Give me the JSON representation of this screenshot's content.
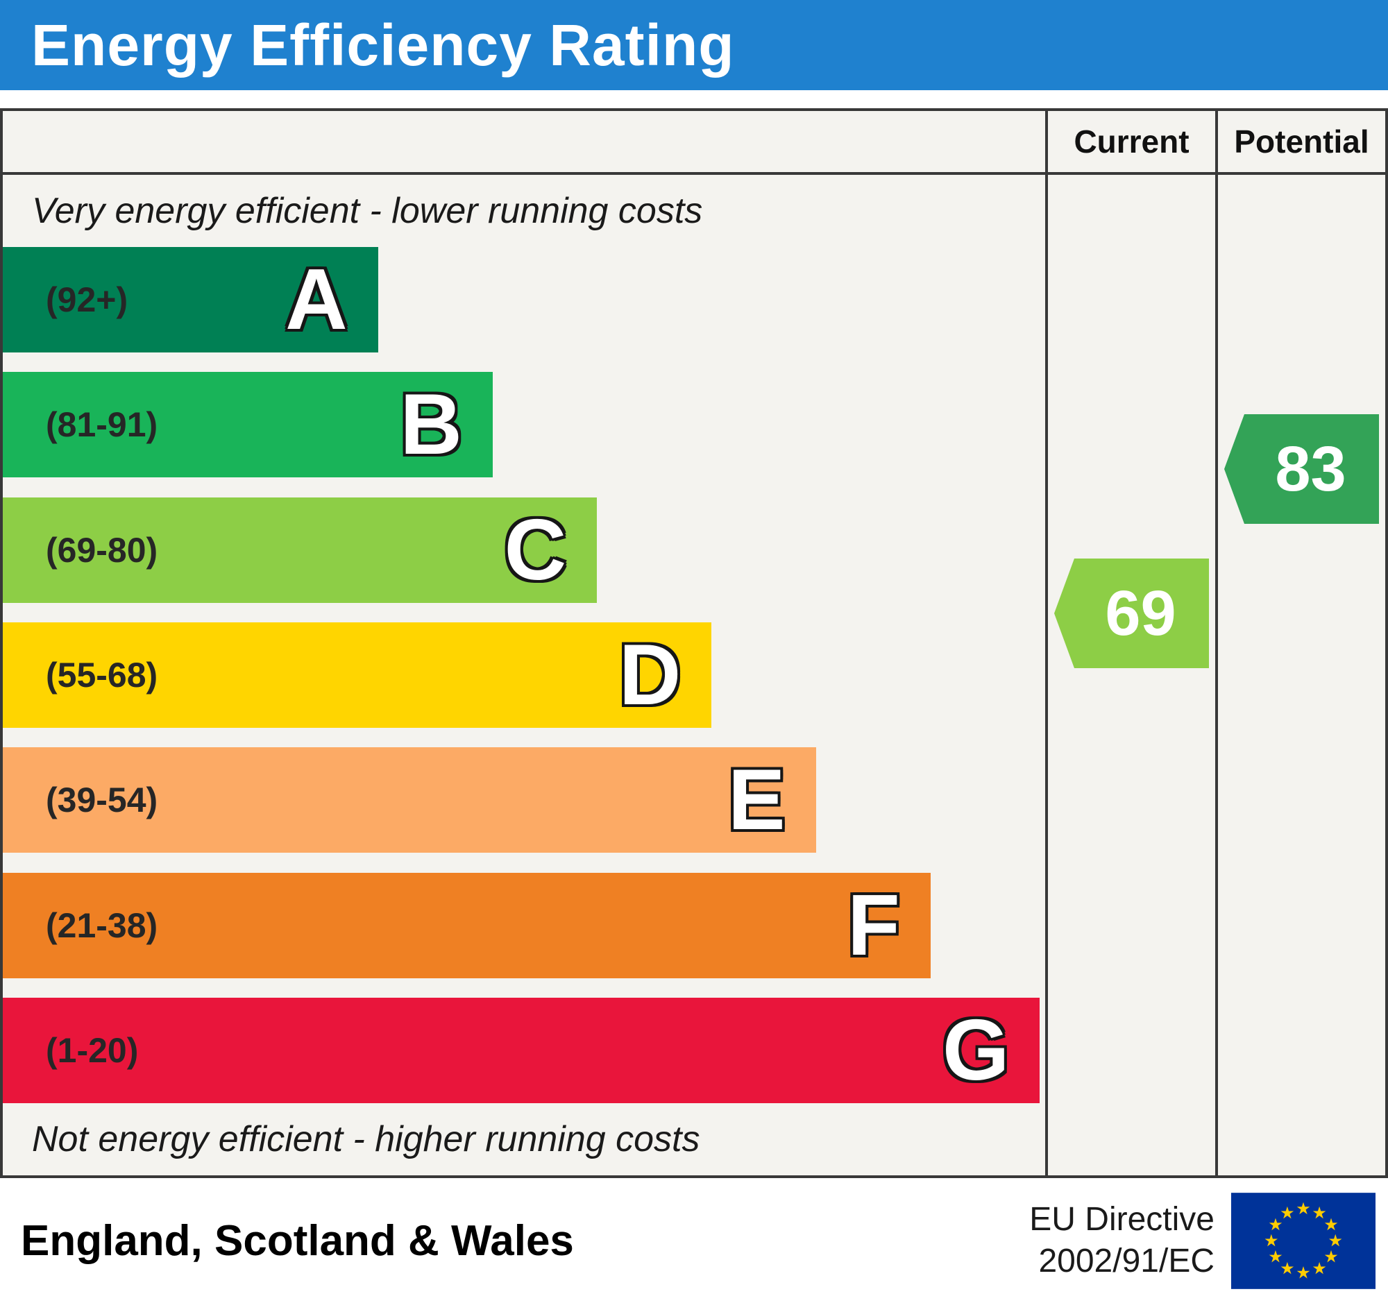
{
  "header": {
    "title": "Energy Efficiency Rating"
  },
  "table": {
    "current_label": "Current",
    "potential_label": "Potential"
  },
  "chart_data": {
    "type": "bar",
    "title": "Energy Efficiency Rating",
    "top_note": "Very energy efficient - lower running costs",
    "bottom_note": "Not energy efficient - higher running costs",
    "bands": [
      {
        "letter": "A",
        "range_label": "(92+)",
        "min": 92,
        "max": 100,
        "color": "#008054",
        "width_pct": 36
      },
      {
        "letter": "B",
        "range_label": "(81-91)",
        "min": 81,
        "max": 91,
        "color": "#19b459",
        "width_pct": 47
      },
      {
        "letter": "C",
        "range_label": "(69-80)",
        "min": 69,
        "max": 80,
        "color": "#8dce46",
        "width_pct": 57
      },
      {
        "letter": "D",
        "range_label": "(55-68)",
        "min": 55,
        "max": 68,
        "color": "#ffd500",
        "width_pct": 68
      },
      {
        "letter": "E",
        "range_label": "(39-54)",
        "min": 39,
        "max": 54,
        "color": "#fcaa65",
        "width_pct": 78
      },
      {
        "letter": "F",
        "range_label": "(21-38)",
        "min": 21,
        "max": 38,
        "color": "#ef8023",
        "width_pct": 89
      },
      {
        "letter": "G",
        "range_label": "(1-20)",
        "min": 1,
        "max": 20,
        "color": "#e9153b",
        "width_pct": 99.5
      }
    ],
    "current": {
      "value": 69,
      "band": "C",
      "color": "#8dce46"
    },
    "potential": {
      "value": 83,
      "band": "B",
      "color": "#33a357"
    }
  },
  "footer": {
    "region": "England, Scotland & Wales",
    "directive_line1": "EU Directive",
    "directive_line2": "2002/91/EC",
    "eu_flag": {
      "background": "#003399",
      "star_color": "#ffcc00"
    }
  }
}
